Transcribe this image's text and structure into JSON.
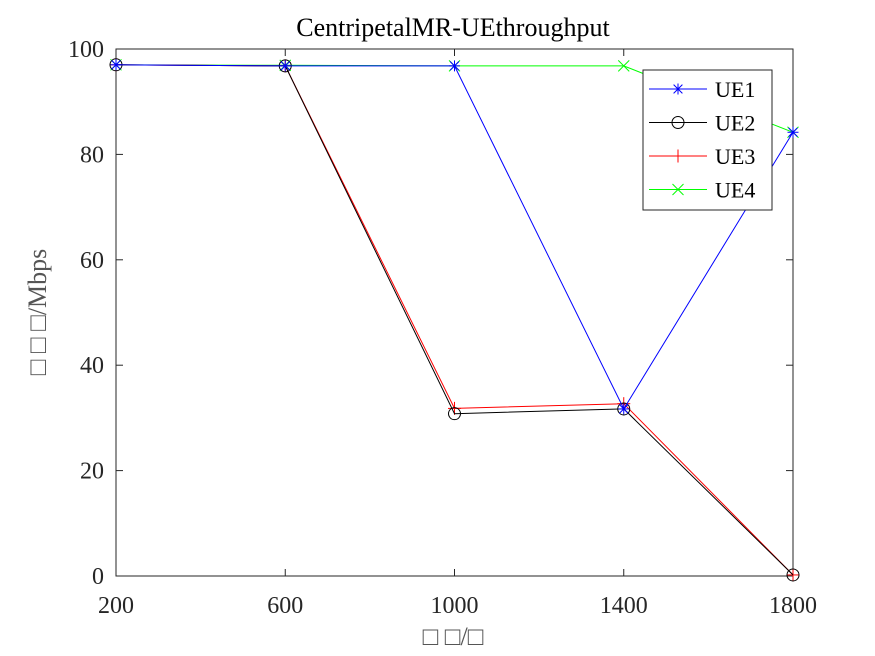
{
  "chart_data": {
    "type": "line",
    "title": "CentripetalMR-UEthroughput",
    "xlabel": "□ □/□",
    "ylabel": "□ □ □/Mbps",
    "x": [
      200,
      600,
      1000,
      1400,
      1800
    ],
    "xticks": [
      "200",
      "600",
      "1000",
      "1400",
      "1800"
    ],
    "yticks": [
      "0",
      "20",
      "40",
      "60",
      "80",
      "100"
    ],
    "xlim": [
      200,
      1800
    ],
    "ylim": [
      0,
      100
    ],
    "grid": false,
    "legend_position": "top-right",
    "series": [
      {
        "name": "UE1",
        "color": "#0000ff",
        "marker": "asterisk",
        "values": [
          97,
          96.8,
          96.8,
          31.7,
          84.2
        ]
      },
      {
        "name": "UE2",
        "color": "#000000",
        "marker": "circle",
        "values": [
          97,
          96.8,
          30.8,
          31.7,
          0.2
        ]
      },
      {
        "name": "UE3",
        "color": "#ff0000",
        "marker": "plus",
        "values": [
          97,
          96.8,
          31.8,
          32.7,
          0.2
        ]
      },
      {
        "name": "UE4",
        "color": "#00ff00",
        "marker": "cross",
        "values": [
          97,
          96.9,
          96.8,
          96.8,
          84.2
        ]
      }
    ]
  }
}
